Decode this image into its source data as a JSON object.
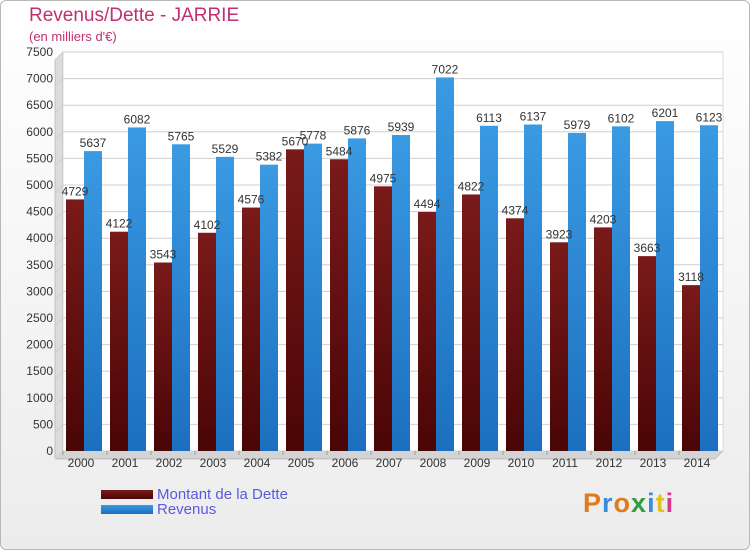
{
  "header": {
    "title": "Revenus/Dette - JARRIE",
    "subtitle": "(en milliers d'€)"
  },
  "legend": {
    "debt_label": "Montant de la Dette",
    "revenue_label": "Revenus"
  },
  "logo": {
    "text": "Proxiti"
  },
  "colors": {
    "debt": "#7a1a1a",
    "debt_dark": "#4a0505",
    "revenue": "#3a9ae2",
    "revenue_dark": "#1c6fbf",
    "title": "#c0306e",
    "legend_text": "#5a5ae0"
  },
  "chart_data": {
    "type": "bar",
    "categories": [
      "2000",
      "2001",
      "2002",
      "2003",
      "2004",
      "2005",
      "2006",
      "2007",
      "2008",
      "2009",
      "2010",
      "2011",
      "2012",
      "2013",
      "2014"
    ],
    "series": [
      {
        "name": "Montant de la Dette",
        "values": [
          4729,
          4122,
          3543,
          4102,
          4576,
          5670,
          5484,
          4975,
          4494,
          4822,
          4374,
          3923,
          4203,
          3663,
          3118
        ],
        "labels": [
          "4729",
          "4122",
          "3543",
          "4102",
          "4576",
          "5670",
          "5484",
          "4975",
          "4494",
          "4822",
          "4374",
          "3923",
          "4203",
          "3663",
          "3118"
        ]
      },
      {
        "name": "Revenus",
        "values": [
          5637,
          6082,
          5765,
          5529,
          5382,
          5778,
          5876,
          5939,
          7022,
          6113,
          6137,
          5979,
          6102,
          6201,
          6123
        ],
        "labels": [
          "5637",
          "6082",
          "5765",
          "5529",
          "5382",
          "5778",
          "5876",
          "5939",
          "7022",
          "6113",
          "6137",
          "5979",
          "6102",
          "6201",
          "6123"
        ]
      }
    ],
    "ylim": [
      0,
      7500
    ],
    "yticks": [
      "0",
      "500",
      "1000",
      "1500",
      "2000",
      "2500",
      "3000",
      "3500",
      "4000",
      "4500",
      "5000",
      "5500",
      "6000",
      "6500",
      "7000",
      "7500"
    ],
    "grid": true,
    "legend_position": "bottom-left"
  }
}
